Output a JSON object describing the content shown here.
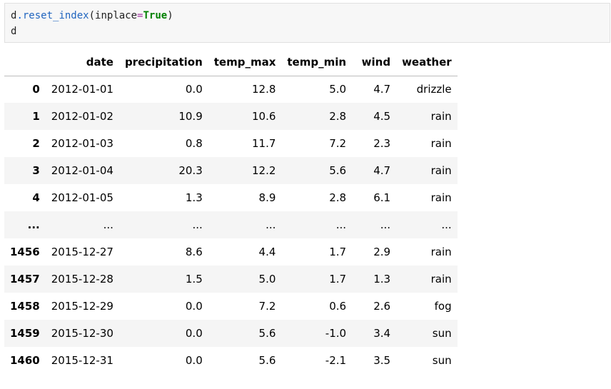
{
  "code": {
    "obj": "d",
    "dot": ".",
    "method": "reset_index",
    "open_paren": "(",
    "arg_name": "inplace",
    "eq": "=",
    "arg_value": "True",
    "close_paren": ")",
    "line2": "d"
  },
  "table": {
    "columns": [
      "",
      "date",
      "precipitation",
      "temp_max",
      "temp_min",
      "wind",
      "weather"
    ],
    "rows": [
      [
        "0",
        "2012-01-01",
        "0.0",
        "12.8",
        "5.0",
        "4.7",
        "drizzle"
      ],
      [
        "1",
        "2012-01-02",
        "10.9",
        "10.6",
        "2.8",
        "4.5",
        "rain"
      ],
      [
        "2",
        "2012-01-03",
        "0.8",
        "11.7",
        "7.2",
        "2.3",
        "rain"
      ],
      [
        "3",
        "2012-01-04",
        "20.3",
        "12.2",
        "5.6",
        "4.7",
        "rain"
      ],
      [
        "4",
        "2012-01-05",
        "1.3",
        "8.9",
        "2.8",
        "6.1",
        "rain"
      ],
      [
        "...",
        "...",
        "...",
        "...",
        "...",
        "...",
        "..."
      ],
      [
        "1456",
        "2015-12-27",
        "8.6",
        "4.4",
        "1.7",
        "2.9",
        "rain"
      ],
      [
        "1457",
        "2015-12-28",
        "1.5",
        "5.0",
        "1.7",
        "1.3",
        "rain"
      ],
      [
        "1458",
        "2015-12-29",
        "0.0",
        "7.2",
        "0.6",
        "2.6",
        "fog"
      ],
      [
        "1459",
        "2015-12-30",
        "0.0",
        "5.6",
        "-1.0",
        "3.4",
        "sun"
      ],
      [
        "1460",
        "2015-12-31",
        "0.0",
        "5.6",
        "-2.1",
        "3.5",
        "sun"
      ]
    ]
  }
}
